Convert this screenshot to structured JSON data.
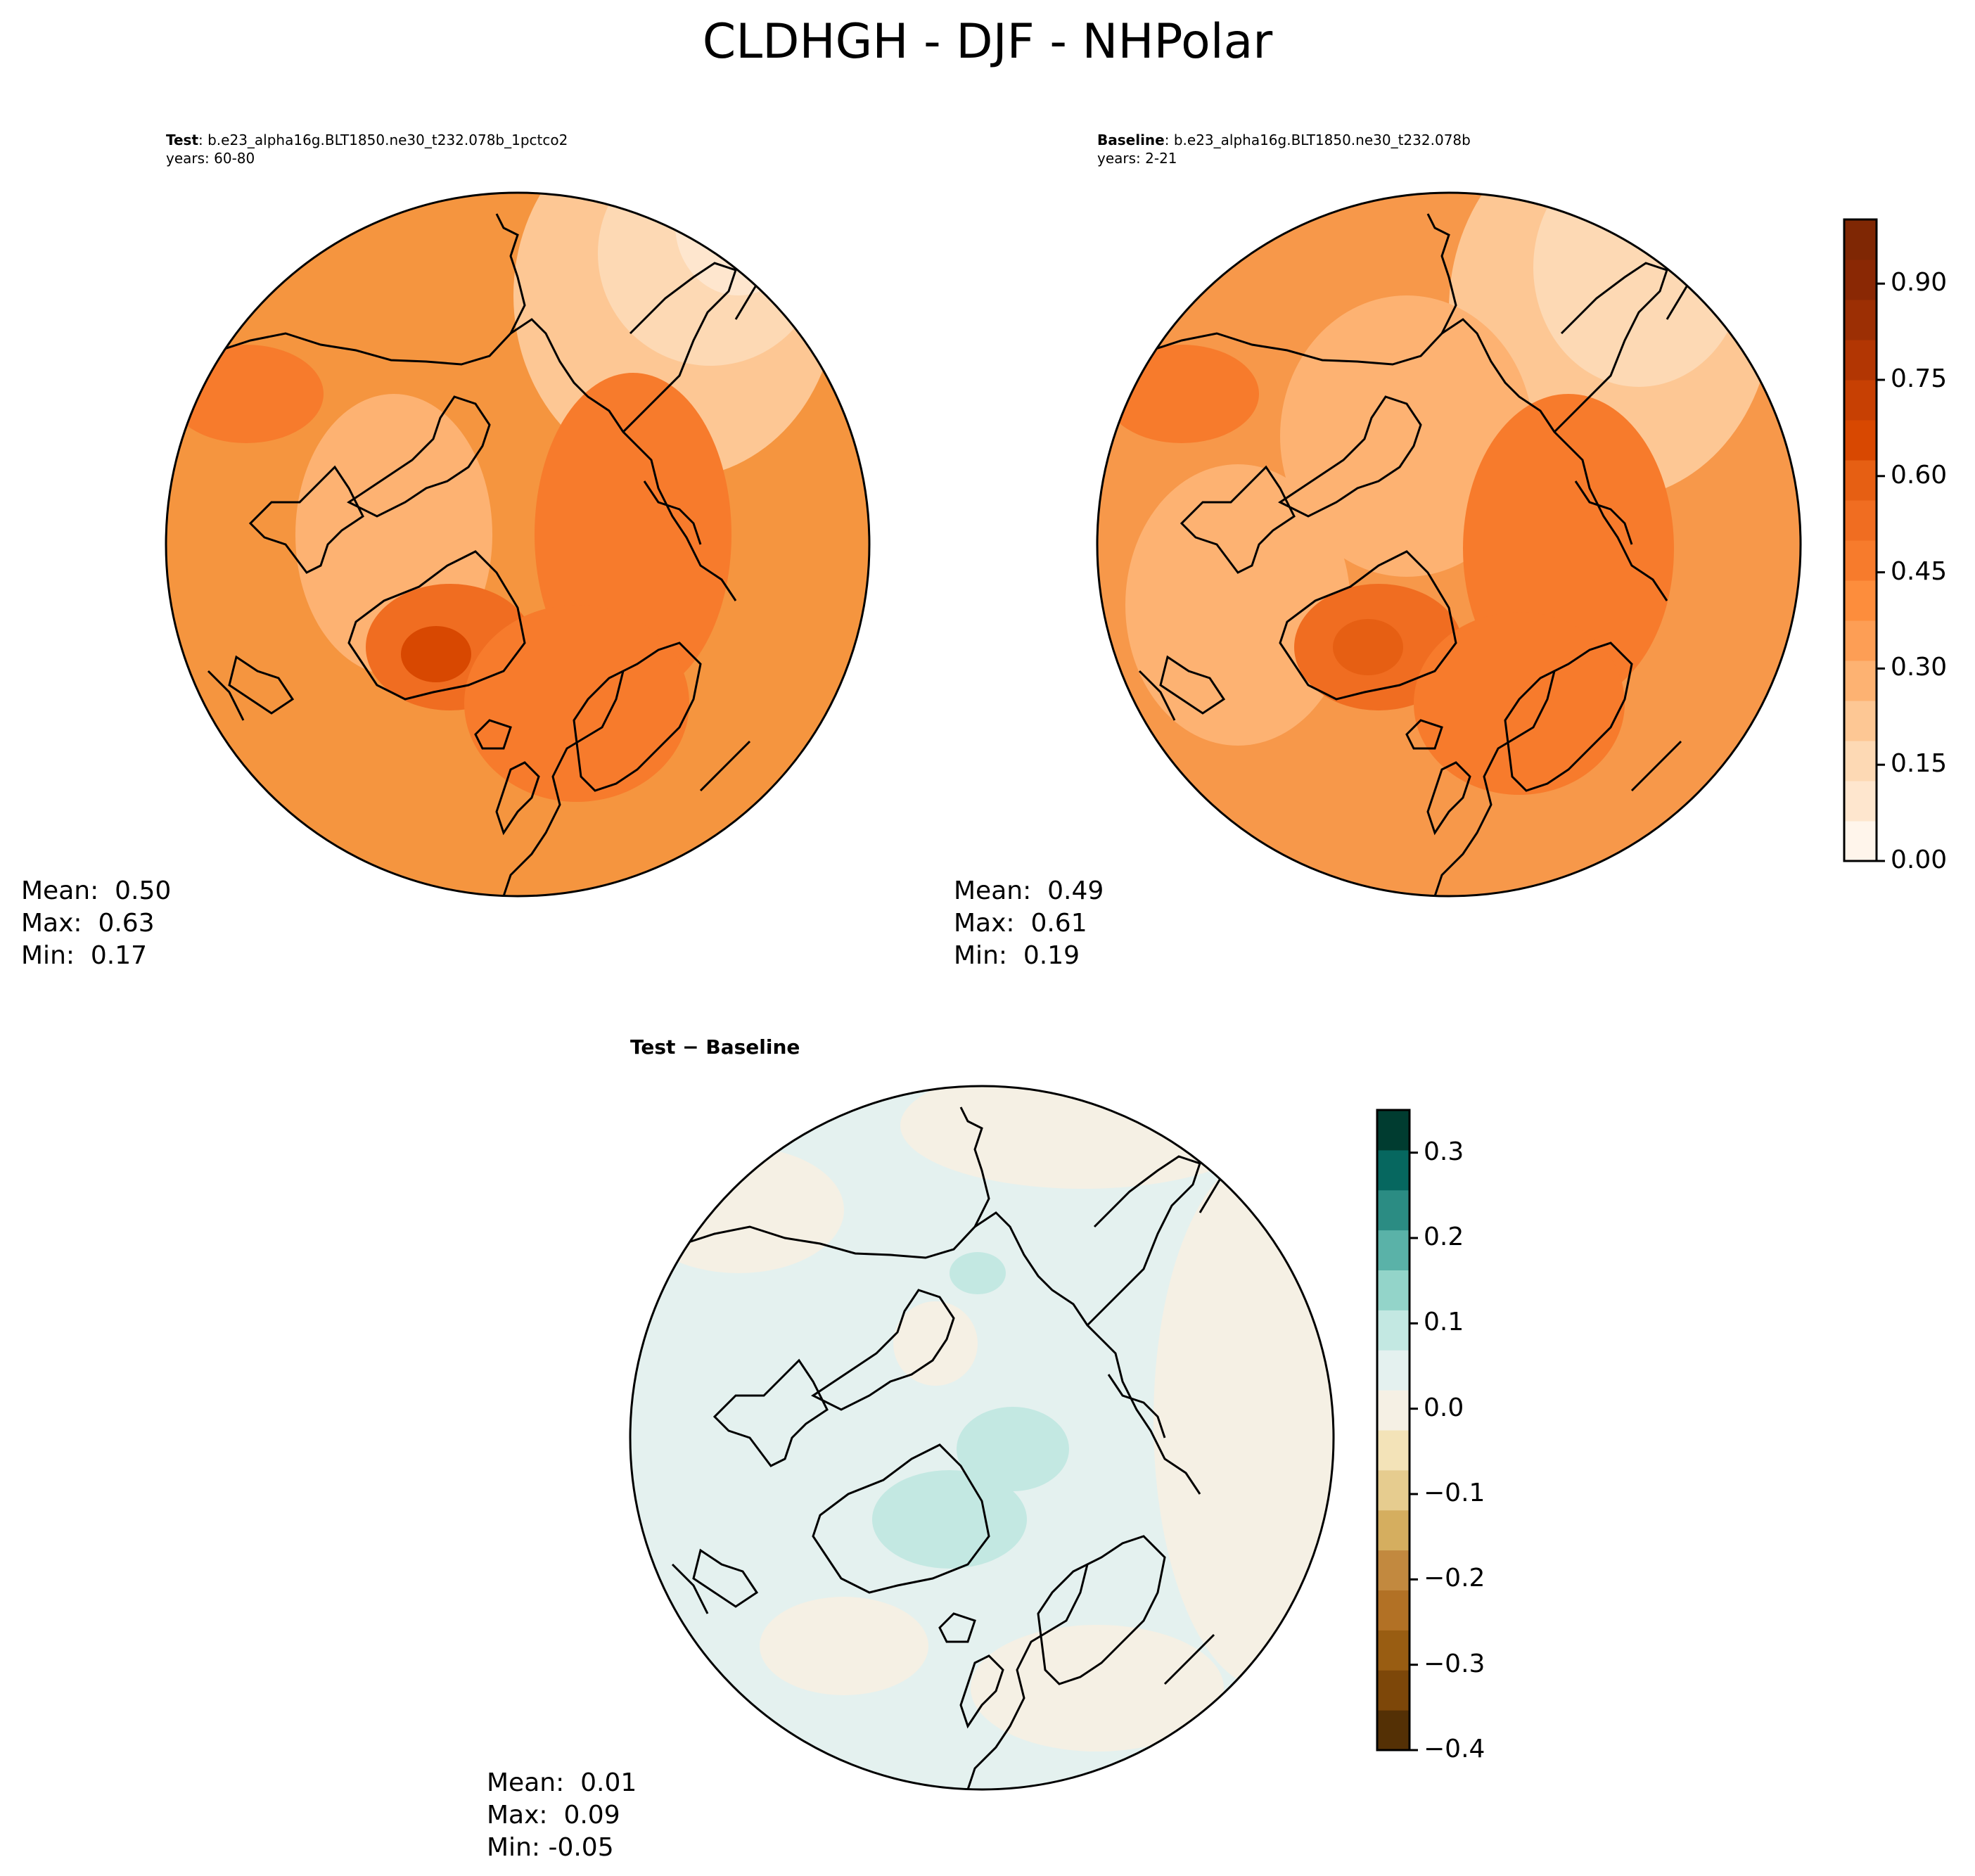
{
  "title": "CLDHGH - DJF - NHPolar",
  "test_panel": {
    "label_bold": "Test",
    "label_rest": ": b.e23_alpha16g.BLT1850.ne30_t232.078b_1pctco2",
    "years": "years: 60-80",
    "mean": "Mean:  0.50",
    "max": "Max:  0.63",
    "min": "Min:  0.17"
  },
  "baseline_panel": {
    "label_bold": "Baseline",
    "label_rest": ": b.e23_alpha16g.BLT1850.ne30_t232.078b",
    "years": "years: 2-21",
    "mean": "Mean:  0.49",
    "max": "Max:  0.61",
    "min": "Min:  0.19"
  },
  "diff_panel": {
    "label": "Test − Baseline",
    "mean": "Mean:  0.01",
    "max": "Max:  0.09",
    "min": "Min: -0.05"
  },
  "colorbar_main": {
    "ticks": [
      "0.00",
      "0.15",
      "0.30",
      "0.45",
      "0.60",
      "0.75",
      "0.90"
    ],
    "tick_values": [
      0.0,
      0.15,
      0.3,
      0.45,
      0.6,
      0.75,
      0.9
    ],
    "range": [
      0.0,
      1.0
    ],
    "colors": [
      "#fff5eb",
      "#fee6ce",
      "#fdd9b4",
      "#fdc794",
      "#fdb272",
      "#fd9e55",
      "#fd8d3c",
      "#f77b2c",
      "#f06d21",
      "#e65f13",
      "#d84801",
      "#c74003",
      "#b23603",
      "#9c2f04",
      "#8a2804",
      "#7f2704"
    ]
  },
  "colorbar_diff": {
    "ticks": [
      "0.3",
      "0.2",
      "0.1",
      "0.0",
      "−0.1",
      "−0.2",
      "−0.3",
      "−0.4"
    ],
    "tick_values": [
      0.3,
      0.2,
      0.1,
      0.0,
      -0.1,
      -0.2,
      -0.3,
      -0.4
    ],
    "range": [
      -0.4,
      0.35
    ],
    "colors": [
      "#543005",
      "#7d4709",
      "#995d12",
      "#b27125",
      "#c2893f",
      "#d5ae5f",
      "#e6cc8f",
      "#f3e3b8",
      "#f5f0e4",
      "#e4f1ef",
      "#c3e8e2",
      "#93d4c9",
      "#5ab2a8",
      "#2b8c83",
      "#06675f",
      "#003c30"
    ]
  },
  "map_colors": {
    "test_base": "#f68d3b",
    "baseline_base": "#f79142",
    "diff_base": "#e4f1ef",
    "diff_neg": "#f5f0e4",
    "diff_pos": "#c3e8e2"
  }
}
